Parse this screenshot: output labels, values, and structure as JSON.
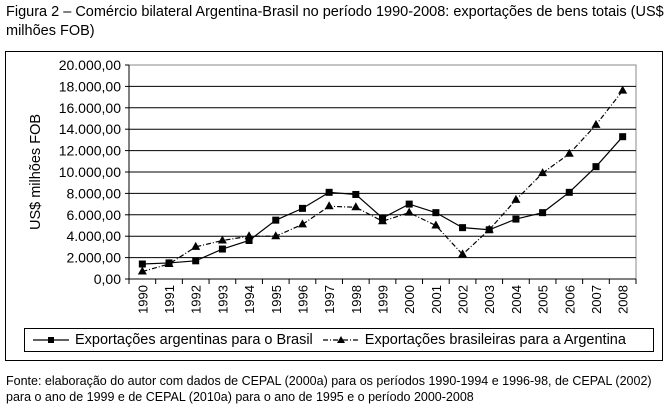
{
  "title": "Figura 2 – Comércio bilateral Argentina-Brasil no período 1990-2008: exportações de bens totais (US$ milhões FOB)",
  "caption": "Fonte: elaboração do autor com dados de CEPAL (2000a) para os períodos 1990-1994 e 1996-98, de CEPAL (2002) para o ano de 1999 e de CEPAL (2010a) para o ano de 1995 e o período 2000-2008",
  "chart_data": {
    "type": "line",
    "title": "Figura 2 – Comércio bilateral Argentina-Brasil no período 1990-2008: exportações de bens totais (US$ milhões FOB)",
    "xlabel": "",
    "ylabel": "US$ milhões FOB",
    "ylim": [
      0,
      20000
    ],
    "yticks": [
      "0,00",
      "2.000,00",
      "4.000,00",
      "6.000,00",
      "8.000,00",
      "10.000,00",
      "12.000,00",
      "14.000,00",
      "16.000,00",
      "18.000,00",
      "20.000,00"
    ],
    "grid": true,
    "legend_position": "bottom",
    "x": [
      "1990",
      "1991",
      "1992",
      "1993",
      "1994",
      "1995",
      "1996",
      "1997",
      "1998",
      "1999",
      "2000",
      "2001",
      "2002",
      "2003",
      "2004",
      "2005",
      "2006",
      "2007",
      "2008"
    ],
    "series": [
      {
        "name": "Exportações argentinas para o Brasil",
        "marker": "square",
        "line": "solid",
        "values": [
          1400,
          1500,
          1700,
          2800,
          3600,
          5500,
          6600,
          8100,
          7900,
          5700,
          7000,
          6200,
          4800,
          4600,
          5600,
          6200,
          8100,
          10500,
          13300
        ]
      },
      {
        "name": "Exportações brasileiras para a Argentina",
        "marker": "triangle",
        "line": "dashdot",
        "values": [
          700,
          1400,
          3000,
          3600,
          4000,
          4000,
          5100,
          6800,
          6700,
          5400,
          6200,
          5000,
          2300,
          4600,
          7400,
          9900,
          11700,
          14400,
          17600
        ]
      }
    ]
  }
}
